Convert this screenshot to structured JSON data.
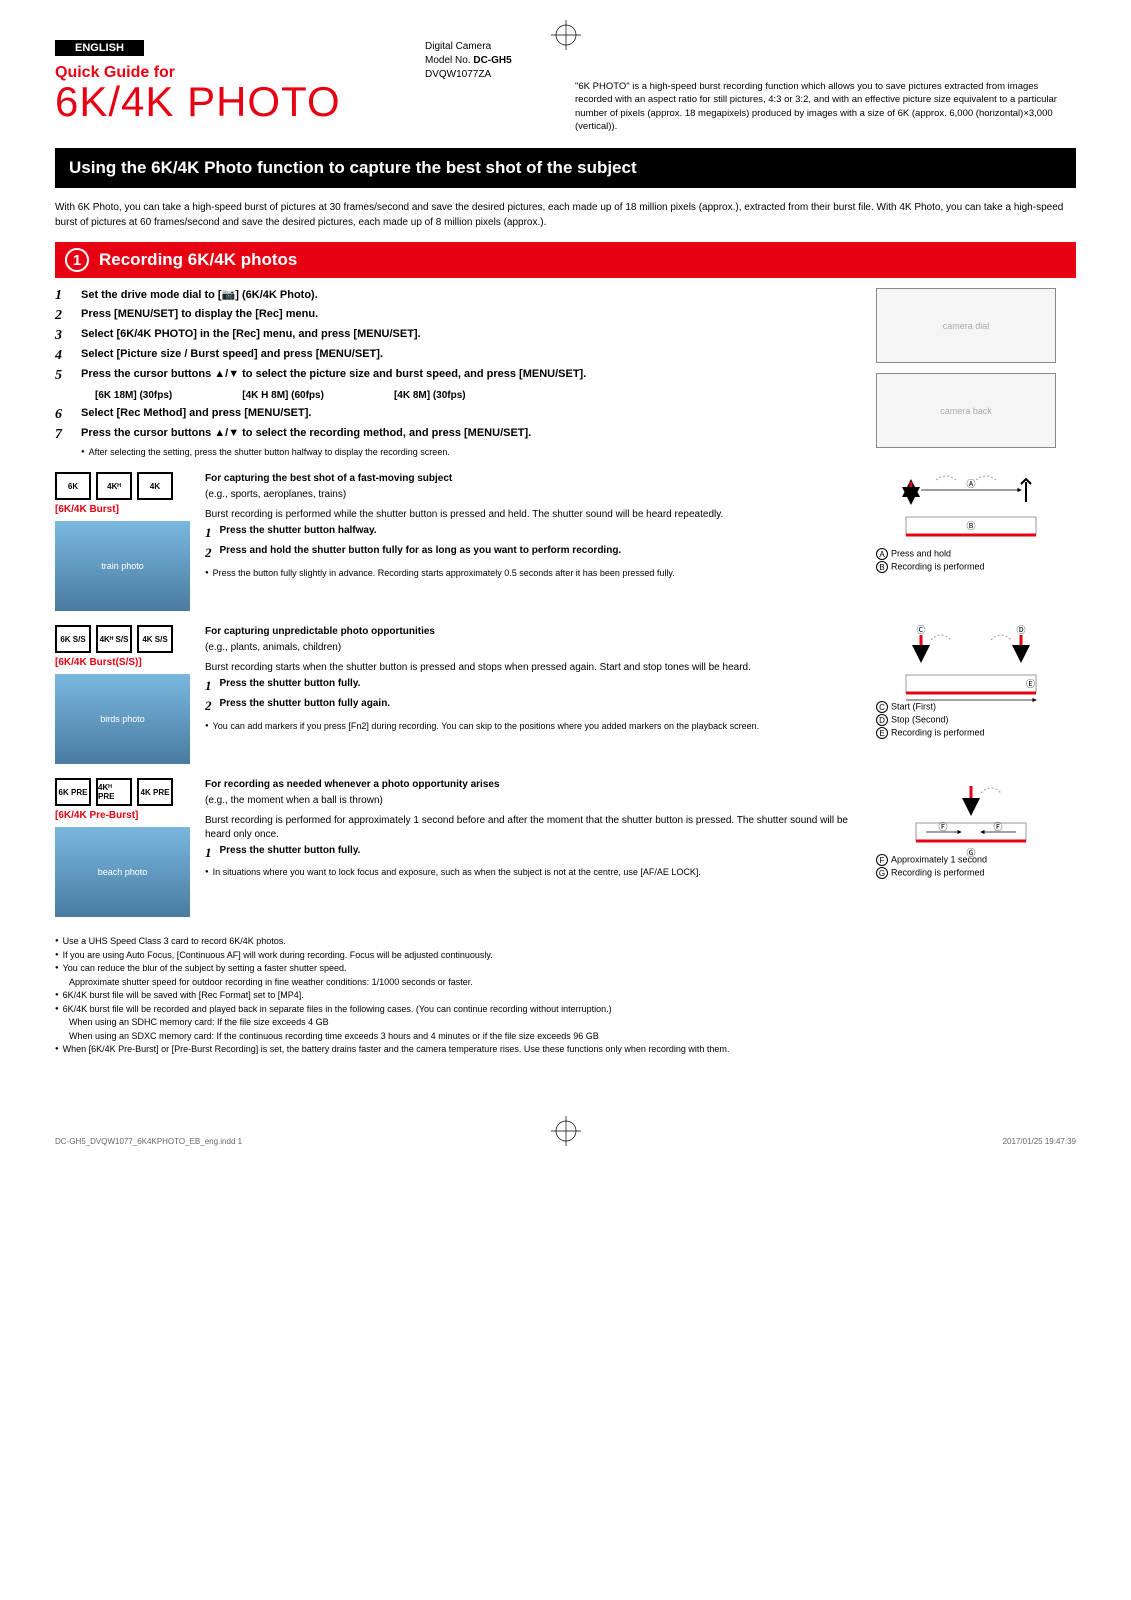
{
  "lang_badge": "ENGLISH",
  "header": {
    "product_type": "Digital Camera",
    "model_label": "Model No.",
    "model_no": "DC-GH5",
    "doc_no": "DVQW1077ZA",
    "quick_guide": "Quick Guide for",
    "title": "6K/4K PHOTO",
    "blurb": "\"6K PHOTO\" is a high-speed burst recording function which allows you to save pictures extracted from images recorded with an aspect ratio for still pictures, 4:3 or 3:2, and with an effective picture size equivalent to a particular number of pixels (approx. 18 megapixels) produced by images with a size of 6K (approx. 6,000 (horizontal)×3,000 (vertical))."
  },
  "black_bar": "Using the 6K/4K Photo function to capture the best shot of the subject",
  "intro": "With 6K Photo, you can take a high-speed burst of pictures at 30 frames/second and save the desired pictures, each made up of 18 million pixels (approx.), extracted from their burst file. With 4K Photo, you can take a high-speed burst of pictures at 60 frames/second and save the desired pictures, each made up of 8 million pixels (approx.).",
  "red_bar": {
    "num": "1",
    "title": "Recording 6K/4K photos"
  },
  "steps": [
    {
      "n": "1",
      "t": "Set the drive mode dial to [📷] (6K/4K Photo)."
    },
    {
      "n": "2",
      "t": "Press [MENU/SET] to display the [Rec] menu."
    },
    {
      "n": "3",
      "t": "Select [6K/4K PHOTO] in the [Rec] menu, and press [MENU/SET]."
    },
    {
      "n": "4",
      "t": "Select [Picture size / Burst speed] and press [MENU/SET]."
    },
    {
      "n": "5",
      "t": "Press the cursor buttons ▲/▼ to select the picture size and burst speed, and press [MENU/SET]."
    }
  ],
  "opts": [
    "[6K 18M] (30fps)",
    "[4K H 8M] (60fps)",
    "[4K 8M] (30fps)"
  ],
  "steps2": [
    {
      "n": "6",
      "t": "Select [Rec Method] and press [MENU/SET]."
    },
    {
      "n": "7",
      "t": "Press the cursor buttons ▲/▼ to select the recording method, and press [MENU/SET]."
    }
  ],
  "step7_note": "After selecting the setting, press the shutter button halfway to display the recording screen.",
  "modes": [
    {
      "icons": [
        "6K",
        "4Kᴴ",
        "4K"
      ],
      "label": "[6K/4K Burst]",
      "title": "For capturing the best shot of a fast-moving subject",
      "eg": "(e.g., sports, aeroplanes, trains)",
      "desc": "Burst recording is performed while the shutter button is pressed and held. The shutter sound will be heard repeatedly.",
      "subs": [
        {
          "n": "1",
          "t": "Press the shutter button halfway."
        },
        {
          "n": "2",
          "t": "Press and hold the shutter button fully for as long as you want to perform recording."
        }
      ],
      "note": "Press the button fully slightly in advance. Recording starts approximately 0.5 seconds after it has been pressed fully.",
      "legend": [
        {
          "l": "A",
          "t": "Press and hold"
        },
        {
          "l": "B",
          "t": "Recording is performed"
        }
      ],
      "thumb_desc": "train photo"
    },
    {
      "icons": [
        "6K S/S",
        "4Kᴴ S/S",
        "4K S/S"
      ],
      "label": "[6K/4K Burst(S/S)]",
      "title": "For capturing unpredictable photo opportunities",
      "eg": "(e.g., plants, animals, children)",
      "desc": "Burst recording starts when the shutter button is pressed and stops when pressed again. Start and stop tones will be heard.",
      "subs": [
        {
          "n": "1",
          "t": "Press the shutter button fully."
        },
        {
          "n": "2",
          "t": "Press the shutter button fully again."
        }
      ],
      "note": "You can add markers if you press [Fn2] during recording. You can skip to the positions where you added markers on the playback screen.",
      "legend": [
        {
          "l": "C",
          "t": "Start (First)"
        },
        {
          "l": "D",
          "t": "Stop (Second)"
        },
        {
          "l": "E",
          "t": "Recording is performed"
        }
      ],
      "thumb_desc": "birds photo"
    },
    {
      "icons": [
        "6K PRE",
        "4Kᴴ PRE",
        "4K PRE"
      ],
      "label": "[6K/4K Pre-Burst]",
      "title": "For recording as needed whenever a photo opportunity arises",
      "eg": "(e.g., the moment when a ball is thrown)",
      "desc": "Burst recording is performed for approximately 1 second before and after the moment that the shutter button is pressed. The shutter sound will be heard only once.",
      "subs": [
        {
          "n": "1",
          "t": "Press the shutter button fully."
        }
      ],
      "note": "In situations where you want to lock focus and exposure, such as when the subject is not at the centre, use [AF/AE LOCK].",
      "legend": [
        {
          "l": "F",
          "t": "Approximately 1 second"
        },
        {
          "l": "G",
          "t": "Recording is performed"
        }
      ],
      "thumb_desc": "beach photo"
    }
  ],
  "foot_notes": [
    "Use a UHS Speed Class 3 card to record 6K/4K photos.",
    "If you are using Auto Focus, [Continuous AF] will work during recording. Focus will be adjusted continuously.",
    "You can reduce the blur of the subject by setting a faster shutter speed.",
    "6K/4K burst file will be saved with [Rec Format] set to [MP4].",
    "6K/4K burst file will be recorded and played back in separate files in the following cases. (You can continue recording without interruption.)",
    "When [6K/4K Pre-Burst] or [Pre-Burst Recording] is set, the battery drains faster and the camera temperature rises. Use these functions only when recording with them."
  ],
  "foot_note_3_sub": "Approximate shutter speed for outdoor recording in fine weather conditions: 1/1000 seconds or faster.",
  "foot_note_5_subs": [
    "When using an SDHC memory card: If the file size exceeds 4 GB",
    "When using an SDXC memory card: If the continuous recording time exceeds 3 hours and 4 minutes or if the file size exceeds 96 GB"
  ],
  "page_foot": {
    "left": "DC-GH5_DVQW1077_6K4KPHOTO_EB_eng.indd   1",
    "right": "2017/01/25   19:47:39"
  },
  "colors": {
    "red": "#e60012",
    "black": "#000000"
  }
}
